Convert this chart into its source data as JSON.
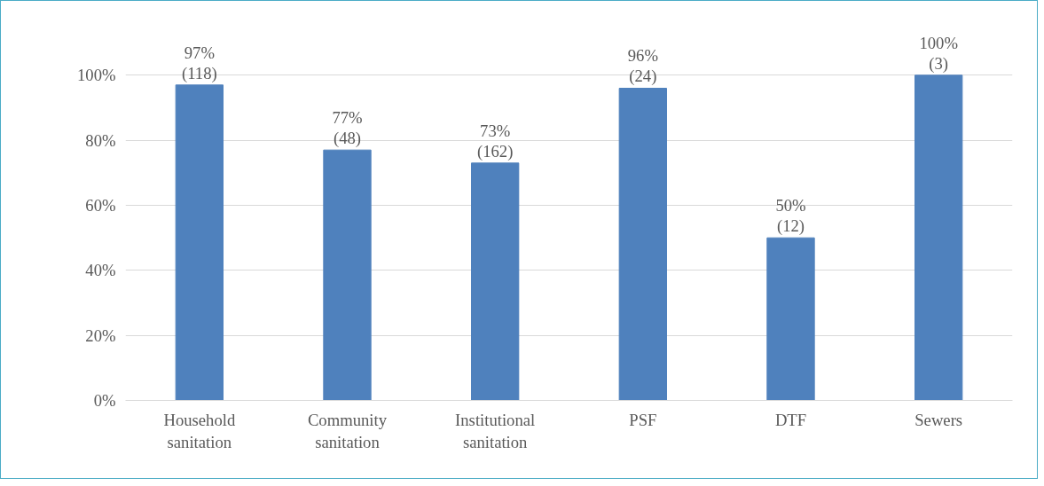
{
  "chart_data": {
    "type": "bar",
    "categories": [
      "Household\nsanitation",
      "Community\nsanitation",
      "Institutional\nsanitation",
      "PSF",
      "DTF",
      "Sewers"
    ],
    "values": [
      97,
      77,
      73,
      96,
      50,
      100
    ],
    "value_labels": [
      "97%\n(118)",
      "77%\n(48)",
      "73%\n(162)",
      "96%\n(24)",
      "50%\n(12)",
      "100%\n(3)"
    ],
    "color": "#4f81bd",
    "ylim": [
      0,
      100
    ],
    "yticks": [
      {
        "value": 0,
        "label": "0%"
      },
      {
        "value": 20,
        "label": "20%"
      },
      {
        "value": 40,
        "label": "40%"
      },
      {
        "value": 60,
        "label": "60%"
      },
      {
        "value": 80,
        "label": "80%"
      },
      {
        "value": 100,
        "label": "100%"
      }
    ],
    "grid": "y"
  }
}
